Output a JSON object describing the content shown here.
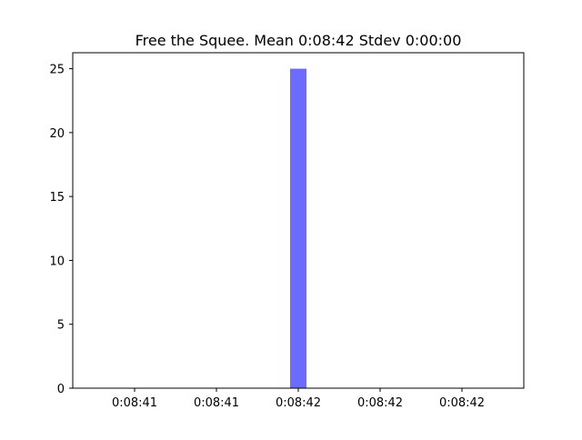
{
  "chart_data": {
    "type": "bar",
    "title": "Free the Squee. Mean 0:08:42 Stdev 0:00:00",
    "xlabel": "",
    "ylabel": "",
    "x_tick_labels": [
      "0:08:41",
      "0:08:41",
      "0:08:42",
      "0:08:42",
      "0:08:42"
    ],
    "y_ticks": [
      0,
      5,
      10,
      15,
      20,
      25
    ],
    "ylim": [
      0,
      26.25
    ],
    "bars": [
      {
        "label": "0:08:42",
        "value": 25
      }
    ],
    "bar_color": "#6b6bff",
    "grid": false,
    "legend": "none"
  }
}
